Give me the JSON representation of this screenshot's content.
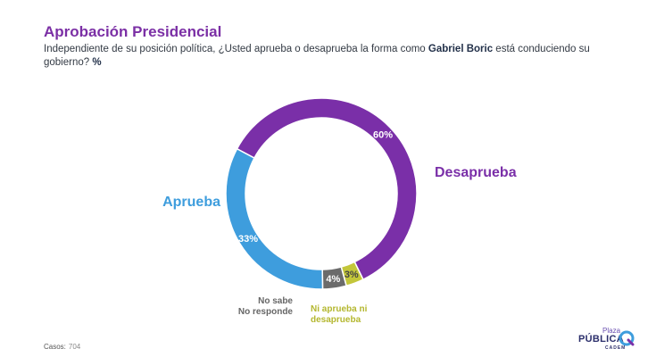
{
  "title": "Aprobación Presidencial",
  "subtitle": {
    "part1": "Independiente de su posición política, ¿Usted aprueba o desaprueba la forma como ",
    "bold": "Gabriel Boric",
    "part2": " está conduciendo su gobierno? ",
    "unit": "%"
  },
  "chart_data": {
    "type": "pie",
    "variant": "donut",
    "slices": [
      {
        "label": "Desaprueba",
        "value": 60,
        "value_label": "60%",
        "color": "#7a2fa8"
      },
      {
        "label": "Ni aprueba ni desaprueba",
        "label_lines": [
          "Ni aprueba ni",
          "desaprueba"
        ],
        "value": 3,
        "value_label": "3%",
        "color": "#c3c63a"
      },
      {
        "label": "No sabe No responde",
        "label_lines": [
          "No sabe",
          "No responde"
        ],
        "value": 4,
        "value_label": "4%",
        "color": "#6b6b6b"
      },
      {
        "label": "Aprueba",
        "value": 33,
        "value_label": "33%",
        "color": "#3e9ddd"
      }
    ]
  },
  "footer": {
    "label": "Casos:",
    "value": "704"
  },
  "logo": {
    "line1": "Plaza",
    "line2": "PÚBLICA",
    "line3": "CADEM"
  }
}
